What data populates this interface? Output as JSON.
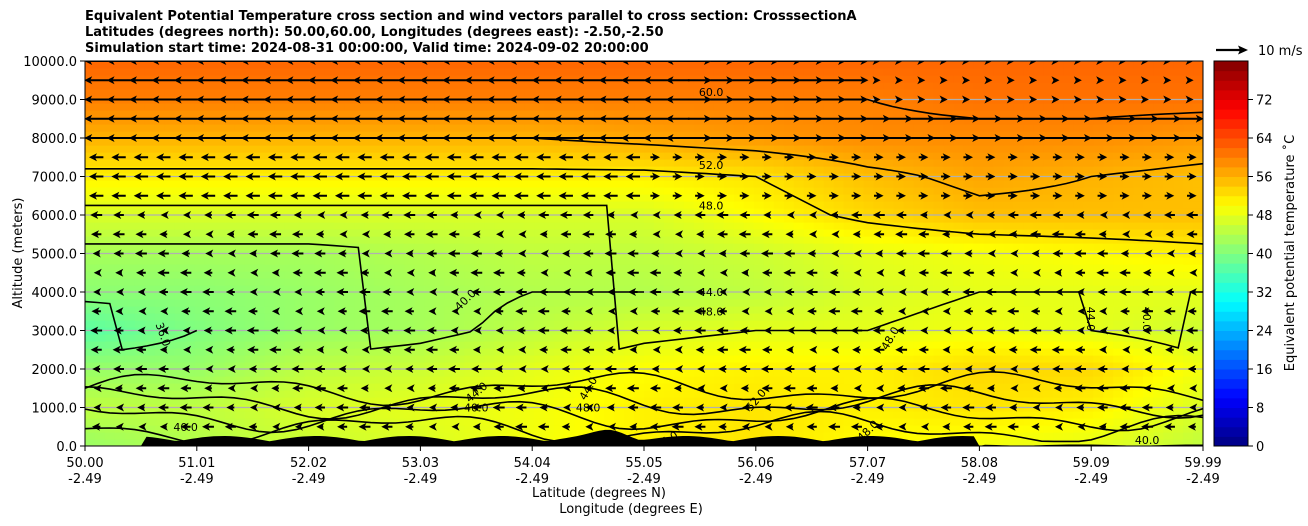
{
  "chart_data": {
    "type": "heatmap",
    "title_lines": [
      "Equivalent Potential Temperature cross section and wind vectors parallel to cross section: CrosssectionA",
      "Latitudes (degrees north): 50.00,60.00, Longitudes (degrees east): -2.50,-2.50",
      "Simulation start time: 2024-08-31 00:00:00, Valid time: 2024-09-02 20:00:00"
    ],
    "ylabel": "Altitude (meters)",
    "xlabel_lines": [
      "Latitude (degrees N)",
      "Longitude (degrees E)"
    ],
    "ylim": [
      0,
      10000
    ],
    "y_ticks": [
      "0.0",
      "1000.0",
      "2000.0",
      "3000.0",
      "4000.0",
      "5000.0",
      "6000.0",
      "7000.0",
      "8000.0",
      "9000.0",
      "10000.0"
    ],
    "x_ticks": [
      {
        "lat": "50.00",
        "lon": "-2.49"
      },
      {
        "lat": "51.01",
        "lon": "-2.49"
      },
      {
        "lat": "52.02",
        "lon": "-2.49"
      },
      {
        "lat": "53.03",
        "lon": "-2.49"
      },
      {
        "lat": "54.04",
        "lon": "-2.49"
      },
      {
        "lat": "55.05",
        "lon": "-2.49"
      },
      {
        "lat": "56.06",
        "lon": "-2.49"
      },
      {
        "lat": "57.07",
        "lon": "-2.49"
      },
      {
        "lat": "58.08",
        "lon": "-2.49"
      },
      {
        "lat": "59.09",
        "lon": "-2.49"
      },
      {
        "lat": "59.99",
        "lon": "-2.49"
      }
    ],
    "grid": true,
    "colorbar": {
      "label": "Equivalent potential temperature ˚C",
      "range": [
        0,
        80
      ],
      "ticks": [
        "0",
        "8",
        "16",
        "24",
        "32",
        "40",
        "48",
        "56",
        "64",
        "72"
      ]
    },
    "quiver_key": "10 m/s",
    "contour_labels": [
      "60.0",
      "52.0",
      "48.0",
      "44.0",
      "48.0",
      "40.0",
      "36.0",
      "44.0",
      "48.0",
      "44.0",
      "40.0",
      "48.0",
      "52.0",
      "44.0",
      "40.0",
      "48.0",
      "44.0",
      "40.0",
      "44.0",
      "40.0"
    ],
    "approx_profiles": [
      {
        "altitude": 0,
        "theta_e": [
          42,
          44,
          46,
          47,
          49,
          51,
          52,
          50,
          49,
          48,
          45
        ]
      },
      {
        "altitude": 1000,
        "theta_e": [
          45,
          45,
          47,
          48,
          49,
          51,
          52,
          51,
          52,
          51,
          47
        ]
      },
      {
        "altitude": 2000,
        "theta_e": [
          42,
          42,
          45,
          46,
          48,
          50,
          51,
          51,
          53,
          53,
          49
        ]
      },
      {
        "altitude": 3000,
        "theta_e": [
          37,
          40,
          42,
          43,
          45,
          47,
          48,
          48,
          49,
          48,
          46
        ]
      },
      {
        "altitude": 4000,
        "theta_e": [
          41,
          41,
          42,
          43,
          44,
          44,
          45,
          47,
          48,
          48,
          48
        ]
      },
      {
        "altitude": 5000,
        "theta_e": [
          43,
          43,
          43,
          44,
          45,
          45,
          46,
          48,
          49,
          50,
          51
        ]
      },
      {
        "altitude": 6000,
        "theta_e": [
          47,
          47,
          47,
          47,
          47,
          47,
          50,
          53,
          55,
          55,
          55
        ]
      },
      {
        "altitude": 7000,
        "theta_e": [
          51,
          51,
          51,
          51,
          51,
          51,
          52,
          55,
          57,
          56,
          55
        ]
      },
      {
        "altitude": 8000,
        "theta_e": [
          56,
          56,
          56,
          56,
          56,
          57,
          58,
          59,
          59,
          59,
          58
        ]
      },
      {
        "altitude": 9000,
        "theta_e": [
          60,
          60,
          60,
          60,
          60,
          60,
          60,
          60,
          61,
          61,
          61
        ]
      },
      {
        "altitude": 10000,
        "theta_e": [
          62,
          62,
          62,
          62,
          62,
          62,
          62,
          62,
          62,
          62,
          62
        ]
      }
    ]
  }
}
